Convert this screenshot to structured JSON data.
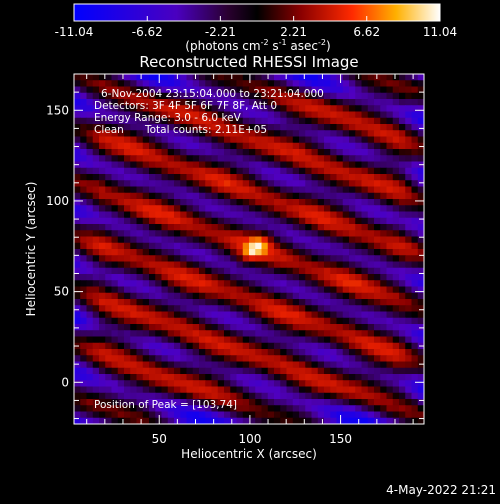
{
  "chart_data": {
    "type": "heatmap",
    "title": "Reconstructed RHESSI Image",
    "xlabel": "Heliocentric X (arcsec)",
    "ylabel": "Heliocentric Y (arcsec)",
    "xlim": [
      3,
      196
    ],
    "ylim": [
      -23,
      170
    ],
    "xticks": [
      50,
      100,
      150
    ],
    "yticks": [
      0,
      50,
      100,
      150
    ],
    "colorbar": {
      "min": -11.04,
      "max": 11.04,
      "ticks": [
        "-11.04",
        "-6.62",
        "-2.21",
        "2.21",
        "6.62",
        "11.04"
      ],
      "label_main": "(photons cm",
      "label_exp1": "-2",
      "label_mid": " s",
      "label_exp2": "-1",
      "label_end": " asec",
      "label_exp3": "-2",
      "label_close": ")"
    },
    "annotations": {
      "time_range": "6-Nov-2004 23:15:04.000 to 23:21:04.000",
      "detectors": "Detectors: 3F 4F 5F 6F 7F 8F, Att 0",
      "energy": "Energy Range: 3.0 - 6.0 keV",
      "clean": "Clean",
      "total_counts": "Total counts: 2.11E+05",
      "peak": "Position of Peak = [103,74]"
    },
    "peak": {
      "x": 103,
      "y": 74,
      "value": 11.04
    }
  },
  "footer": {
    "date": "4-May-2022 21:21"
  }
}
